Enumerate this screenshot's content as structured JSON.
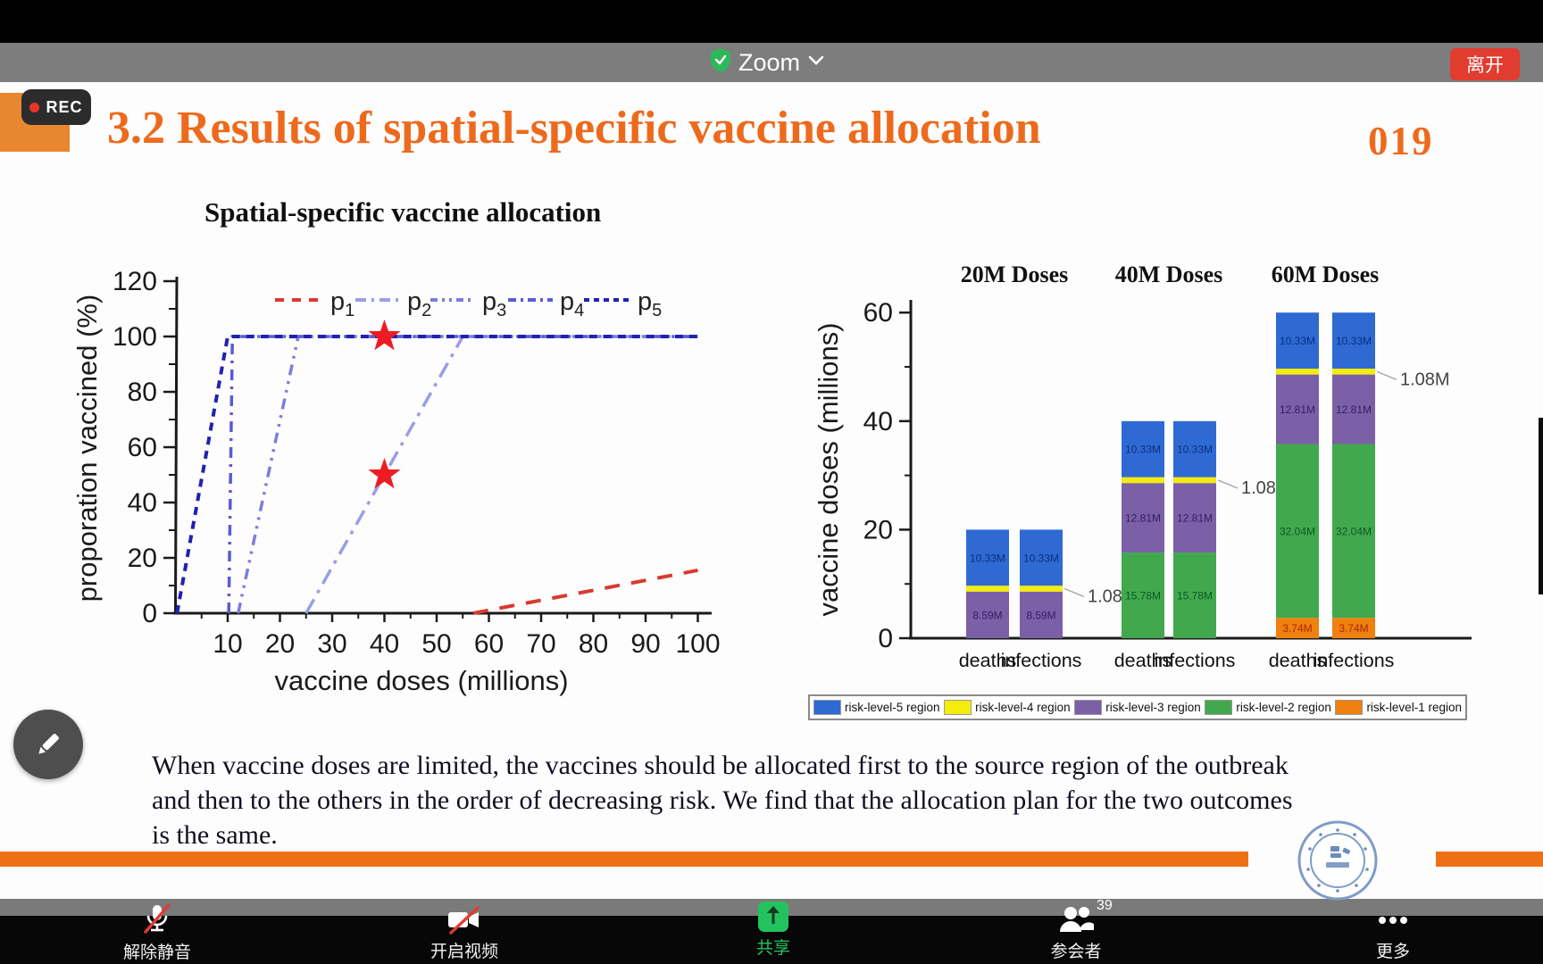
{
  "top_bar": {
    "meeting_menu_label": "Zoom",
    "leave_button_label": "离开"
  },
  "rec_badge": {
    "label": "REC"
  },
  "slide": {
    "title": "3.2 Results of spatial-specific vaccine allocation",
    "page_number": "019",
    "subtitle": "Spatial-specific vaccine allocation",
    "body_lines": [
      "When vaccine doses are limited, the vaccines should be allocated first to the source region of the outbreak",
      "and then to the others in the order of decreasing risk. We find that the allocation plan for the two outcomes",
      "is the same."
    ]
  },
  "colors": {
    "accent_orange": "#ed6a1d",
    "slide_bottom_bar": "#ed7014",
    "share_green": "#22c35e",
    "leave_red": "#e23b30"
  },
  "chart_data": [
    {
      "type": "line",
      "xlabel": "vaccine doses (millions)",
      "ylabel": "proporation vaccined (%)",
      "xlim": [
        0,
        100
      ],
      "ylim": [
        0,
        120
      ],
      "xticks": [
        10,
        20,
        30,
        40,
        50,
        60,
        70,
        80,
        90,
        100
      ],
      "yticks": [
        0,
        20,
        40,
        60,
        80,
        100,
        120
      ],
      "legend_position": "top",
      "series": [
        {
          "name": "p1",
          "base": "p",
          "sub": "1",
          "color": "#d93a30",
          "dash": "17 13",
          "width": 4,
          "sample_dash": "10 9",
          "points": [
            [
              57,
              0
            ],
            [
              100,
              15.5
            ]
          ]
        },
        {
          "name": "p2",
          "base": "p",
          "sub": "2",
          "color": "#9c9ce8",
          "dash": "18 8 4 8",
          "width": 3.5,
          "sample_dash": "12 6 3 6",
          "points": [
            [
              25,
              0
            ],
            [
              55,
              100
            ],
            [
              100,
              100
            ]
          ]
        },
        {
          "name": "p3",
          "base": "p",
          "sub": "3",
          "color": "#7d7dde",
          "dash": "12 7 3 7 3 7",
          "width": 3.5,
          "sample_dash": "8 5 3 5 3 5",
          "points": [
            [
              12,
              0
            ],
            [
              23.5,
              100
            ],
            [
              100,
              100
            ]
          ]
        },
        {
          "name": "p4",
          "base": "p",
          "sub": "4",
          "color": "#5b5bd6",
          "dash": "12 7 3 7",
          "width": 3.5,
          "sample_dash": "9 5 3 5",
          "points": [
            [
              10.2,
              0
            ],
            [
              10.9,
              100
            ],
            [
              100,
              100
            ]
          ]
        },
        {
          "name": "p5",
          "base": "p",
          "sub": "5",
          "color": "#2121b0",
          "dash": "9 7",
          "width": 4,
          "sample_dash": "6 5",
          "points": [
            [
              0.3,
              0
            ],
            [
              10,
              100
            ],
            [
              100,
              100
            ]
          ]
        }
      ],
      "markers": {
        "shape": "star",
        "color": "#ed1c24",
        "points": [
          [
            40,
            100
          ],
          [
            40,
            50
          ]
        ]
      }
    },
    {
      "type": "bar-stacked",
      "ylabel": "vaccine doses (millions)",
      "yticks": [
        0,
        20,
        40,
        60
      ],
      "ylim": [
        0,
        65
      ],
      "bar_categories": [
        "deaths",
        "infections"
      ],
      "groups": [
        {
          "title": "20M Doses",
          "annotation": "1.08M",
          "segments": [
            {
              "region": "risk-level-3 region",
              "value": 8.59,
              "label": "8.59M",
              "color": "#7b60a8",
              "label_color": "#332060"
            },
            {
              "region": "risk-level-4 region",
              "value": 1.08,
              "label": "",
              "color": "#f5ec0c",
              "label_color": "#555"
            },
            {
              "region": "risk-level-5 region",
              "value": 10.33,
              "label": "10.33M",
              "color": "#2f6ad3",
              "label_color": "#0a2f80"
            }
          ]
        },
        {
          "title": "40M Doses",
          "annotation": "1.08M",
          "segments": [
            {
              "region": "risk-level-2 region",
              "value": 15.78,
              "label": "15.78M",
              "color": "#41a84e",
              "label_color": "#0b5b20"
            },
            {
              "region": "risk-level-3 region",
              "value": 12.81,
              "label": "12.81M",
              "color": "#7b60a8",
              "label_color": "#332060"
            },
            {
              "region": "risk-level-4 region",
              "value": 1.08,
              "label": "",
              "color": "#f5ec0c",
              "label_color": "#555"
            },
            {
              "region": "risk-level-5 region",
              "value": 10.33,
              "label": "10.33M",
              "color": "#2f6ad3",
              "label_color": "#0a2f80"
            }
          ]
        },
        {
          "title": "60M Doses",
          "annotation": "1.08M",
          "segments": [
            {
              "region": "risk-level-1 region",
              "value": 3.74,
              "label": "3.74M",
              "color": "#f0800f",
              "label_color": "#a82800"
            },
            {
              "region": "risk-level-2 region",
              "value": 32.04,
              "label": "32.04M",
              "color": "#41a84e",
              "label_color": "#0b5b20"
            },
            {
              "region": "risk-level-3 region",
              "value": 12.81,
              "label": "12.81M",
              "color": "#7b60a8",
              "label_color": "#332060"
            },
            {
              "region": "risk-level-4 region",
              "value": 1.08,
              "label": "",
              "color": "#f5ec0c",
              "label_color": "#555"
            },
            {
              "region": "risk-level-5 region",
              "value": 10.33,
              "label": "10.33M",
              "color": "#2f6ad3",
              "label_color": "#0a2f80"
            }
          ]
        }
      ],
      "legend": [
        {
          "label": "risk-level-5 region",
          "color": "#2f6ad3"
        },
        {
          "label": "risk-level-4 region",
          "color": "#f5ec0c"
        },
        {
          "label": "risk-level-3 region",
          "color": "#7b60a8"
        },
        {
          "label": "risk-level-2 region",
          "color": "#41a84e"
        },
        {
          "label": "risk-level-1 region",
          "color": "#f0800f"
        }
      ]
    }
  ],
  "toolbar": {
    "participants_count": "39",
    "items": [
      {
        "id": "unmute",
        "label": "解除静音"
      },
      {
        "id": "start-video",
        "label": "开启视频"
      },
      {
        "id": "share",
        "label": "共享"
      },
      {
        "id": "participants",
        "label": "参会者"
      },
      {
        "id": "more",
        "label": "更多"
      }
    ]
  }
}
